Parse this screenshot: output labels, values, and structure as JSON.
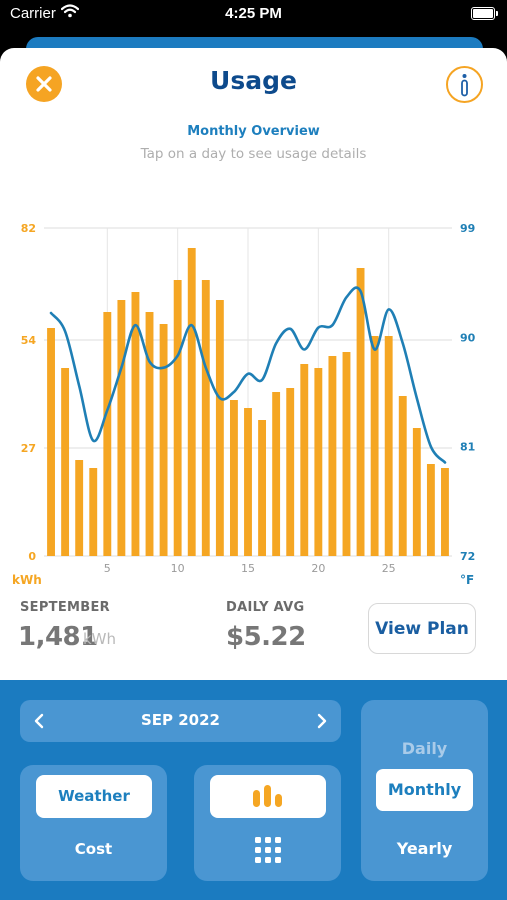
{
  "status_bar": {
    "carrier": "Carrier",
    "time": "4:25 PM"
  },
  "header": {
    "title": "Usage",
    "close_icon": "close-icon",
    "info_icon": "info-icon"
  },
  "chart_header": {
    "title": "Monthly Overview",
    "hint": "Tap on a day to see usage details"
  },
  "chart_data": {
    "type": "bar",
    "x": [
      1,
      2,
      3,
      4,
      5,
      6,
      7,
      8,
      9,
      10,
      11,
      12,
      13,
      14,
      15,
      16,
      17,
      18,
      19,
      20,
      21,
      22,
      23,
      24,
      25,
      26,
      27,
      28,
      29
    ],
    "xticks": [
      5,
      10,
      15,
      20,
      25
    ],
    "xlim": [
      0.5,
      29.5
    ],
    "series": [
      {
        "axis": "left",
        "type": "bar",
        "color": "#f5a623",
        "values": [
          57,
          47,
          24,
          22,
          61,
          64,
          66,
          61,
          58,
          69,
          77,
          69,
          64,
          39,
          37,
          34,
          41,
          42,
          48,
          47,
          50,
          51,
          72,
          55,
          55,
          40,
          32,
          23,
          22
        ]
      },
      {
        "axis": "right",
        "type": "line",
        "color": "#1f7fb5",
        "values": [
          92,
          90.5,
          86,
          81.5,
          84,
          87.5,
          91,
          88,
          87.5,
          88.5,
          91,
          87.5,
          85,
          85.5,
          87,
          86.5,
          89.5,
          90.7,
          89,
          90.8,
          91,
          93.3,
          93.8,
          89,
          92.3,
          89.5,
          85,
          81,
          79.7
        ]
      }
    ],
    "left_axis": {
      "label": "kWh",
      "ticks": [
        0,
        27,
        54,
        82
      ],
      "ylim": [
        0,
        82
      ]
    },
    "right_axis": {
      "label": "°F",
      "ticks": [
        72,
        81,
        90,
        99
      ],
      "ylim": [
        72,
        99
      ]
    },
    "grid": true
  },
  "stats": {
    "month_label": "SEPTEMBER",
    "month_value": "1,481",
    "month_unit": "kWh",
    "avg_label": "DAILY AVG",
    "avg_value": "$5.22"
  },
  "view_plan_label": "View Plan",
  "controls": {
    "month_label": "SEP 2022",
    "weather_label": "Weather",
    "cost_label": "Cost",
    "chart_icon": "bar-chart-icon",
    "grid_icon": "grid-icon",
    "period_options": [
      "Daily",
      "Monthly",
      "Yearly"
    ],
    "selected_period": "Monthly"
  },
  "colors": {
    "accent": "#f5a623",
    "brand_blue": "#1b7bc0",
    "title_blue": "#0d4a8c"
  }
}
